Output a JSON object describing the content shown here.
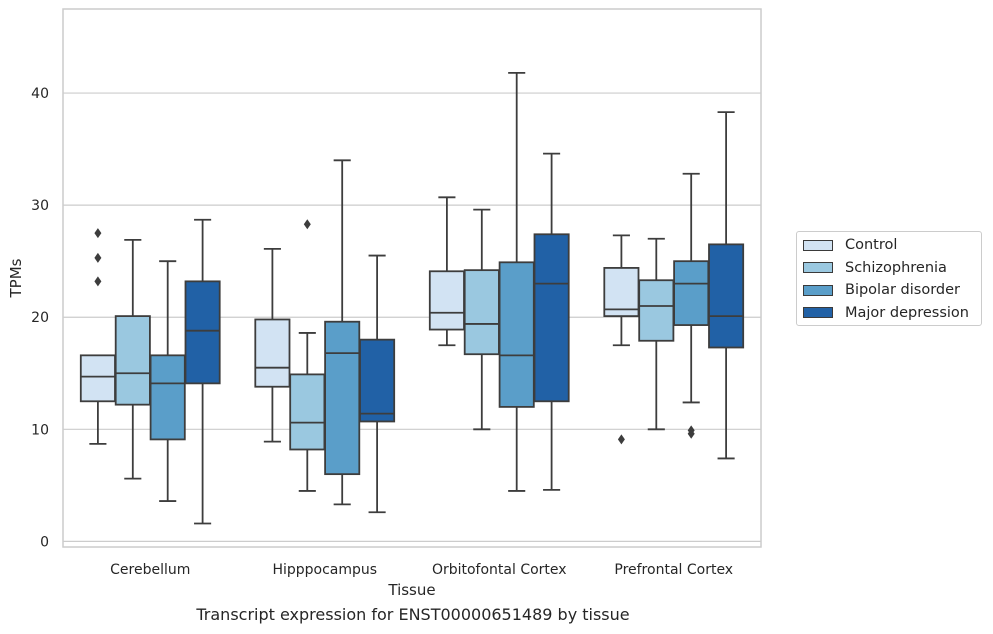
{
  "chart_data": {
    "type": "box",
    "title": "",
    "caption": "Transcript expression for ENST00000651489 by tissue",
    "xlabel": "Tissue",
    "ylabel": "TPMs",
    "ylim": [
      -0.5,
      47.5
    ],
    "yticks": [
      0,
      10,
      20,
      30,
      40
    ],
    "grid": "horizontal",
    "legend_position": "right",
    "categories": [
      "Cerebellum",
      "Hipppocampus",
      "Orbitofontal Cortex",
      "Prefrontal Cortex"
    ],
    "series": [
      {
        "name": "Control",
        "color": "#d2e3f3",
        "boxes": [
          {
            "whislo": 8.7,
            "q1": 12.5,
            "med": 14.7,
            "q3": 16.6,
            "whishi": 16.6,
            "fliers": [
              23.2,
              25.3,
              27.5
            ]
          },
          {
            "whislo": 8.9,
            "q1": 13.8,
            "med": 15.5,
            "q3": 19.8,
            "whishi": 26.1,
            "fliers": []
          },
          {
            "whislo": 17.5,
            "q1": 18.9,
            "med": 20.4,
            "q3": 24.1,
            "whishi": 30.7,
            "fliers": []
          },
          {
            "whislo": 17.5,
            "q1": 20.1,
            "med": 20.7,
            "q3": 24.4,
            "whishi": 27.3,
            "fliers": [
              9.1
            ]
          }
        ]
      },
      {
        "name": "Schizophrenia",
        "color": "#9ac8e0",
        "boxes": [
          {
            "whislo": 5.6,
            "q1": 12.2,
            "med": 15.0,
            "q3": 20.1,
            "whishi": 26.9,
            "fliers": []
          },
          {
            "whislo": 4.5,
            "q1": 8.2,
            "med": 10.6,
            "q3": 14.9,
            "whishi": 18.6,
            "fliers": [
              28.3
            ]
          },
          {
            "whislo": 10.0,
            "q1": 16.7,
            "med": 19.4,
            "q3": 24.2,
            "whishi": 29.6,
            "fliers": []
          },
          {
            "whislo": 10.0,
            "q1": 17.9,
            "med": 21.0,
            "q3": 23.3,
            "whishi": 27.0,
            "fliers": []
          }
        ]
      },
      {
        "name": "Bipolar disorder",
        "color": "#5a9ec9",
        "boxes": [
          {
            "whislo": 3.6,
            "q1": 9.1,
            "med": 14.1,
            "q3": 16.6,
            "whishi": 25.0,
            "fliers": []
          },
          {
            "whislo": 3.3,
            "q1": 6.0,
            "med": 16.8,
            "q3": 19.6,
            "whishi": 34.0,
            "fliers": []
          },
          {
            "whislo": 4.5,
            "q1": 12.0,
            "med": 16.6,
            "q3": 24.9,
            "whishi": 41.8,
            "fliers": []
          },
          {
            "whislo": 12.4,
            "q1": 19.3,
            "med": 23.0,
            "q3": 25.0,
            "whishi": 32.8,
            "fliers": [
              9.6,
              9.9
            ]
          }
        ]
      },
      {
        "name": "Major depression",
        "color": "#2161a6",
        "boxes": [
          {
            "whislo": 1.6,
            "q1": 14.1,
            "med": 18.8,
            "q3": 23.2,
            "whishi": 28.7,
            "fliers": []
          },
          {
            "whislo": 2.6,
            "q1": 10.7,
            "med": 11.4,
            "q3": 18.0,
            "whishi": 25.5,
            "fliers": []
          },
          {
            "whislo": 4.6,
            "q1": 12.5,
            "med": 23.0,
            "q3": 27.4,
            "whishi": 34.6,
            "fliers": []
          },
          {
            "whislo": 7.4,
            "q1": 17.3,
            "med": 20.1,
            "q3": 26.5,
            "whishi": 38.3,
            "fliers": []
          }
        ]
      }
    ]
  }
}
